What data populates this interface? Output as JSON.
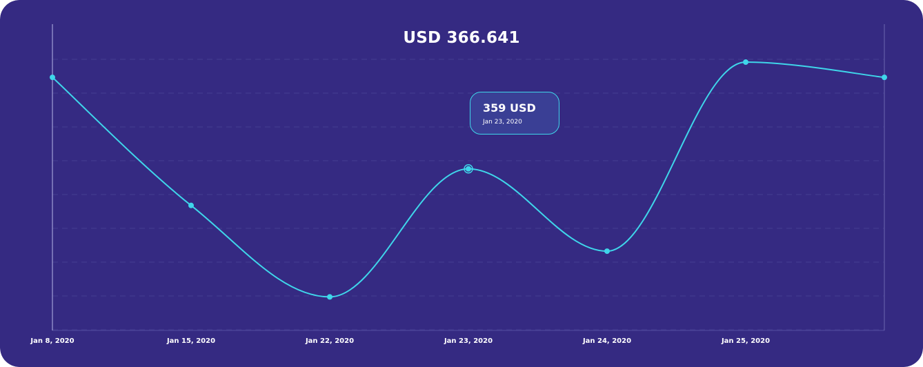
{
  "colors": {
    "background": "#352a82",
    "line": "#3fd6ea",
    "gridline": "#4a4296",
    "text": "#ffffff"
  },
  "header": {
    "title": "USD 366.641"
  },
  "tooltip": {
    "value": "359 USD",
    "date": "Jan 23, 2020"
  },
  "chart_data": {
    "type": "line",
    "title": "USD 366.641",
    "xlabel": "",
    "ylabel": "",
    "grid": true,
    "x": [
      "Jan 8, 2020",
      "Jan 15, 2020",
      "Jan 22, 2020",
      "Jan 23, 2020",
      "Jan 24, 2020",
      "Jan 25, 2020",
      ""
    ],
    "ylim": [
      0,
      100
    ],
    "series": [
      {
        "name": "",
        "values": [
          83,
          41,
          11,
          53,
          26,
          88,
          83
        ]
      }
    ],
    "highlighted_index": 3
  }
}
